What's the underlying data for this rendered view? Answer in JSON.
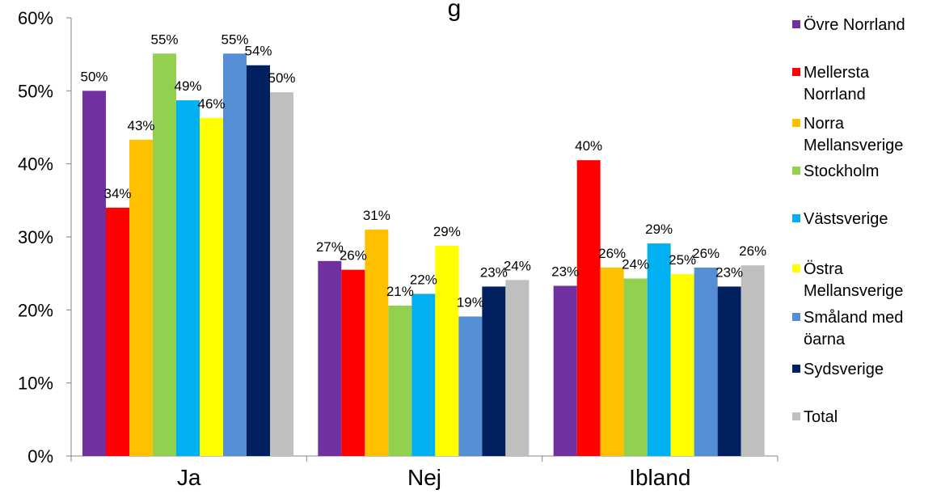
{
  "chart_data": {
    "type": "bar",
    "title_visible_fragment": "g",
    "categories": [
      "Ja",
      "Nej",
      "Ibland"
    ],
    "ylim": [
      0,
      60
    ],
    "yticks": [
      "0%",
      "10%",
      "20%",
      "30%",
      "40%",
      "50%",
      "60%"
    ],
    "grid": false,
    "legend_position": "right",
    "series": [
      {
        "name": "Övre Norrland",
        "legend_lines": [
          "Övre Norrland"
        ],
        "color": "#7030A0",
        "values": [
          50,
          26.7,
          23.3
        ],
        "labels": [
          "50%",
          "27%",
          "23%"
        ]
      },
      {
        "name": "Mellersta Norrland",
        "legend_lines": [
          "Mellersta",
          "Norrland"
        ],
        "color": "#FF0000",
        "values": [
          34,
          25.5,
          40.5
        ],
        "labels": [
          "34%",
          "26%",
          "40%"
        ]
      },
      {
        "name": "Norra Mellansverige",
        "legend_lines": [
          "Norra",
          "Mellansverige"
        ],
        "color": "#FFC000",
        "values": [
          43.3,
          31,
          25.8
        ],
        "labels": [
          "43%",
          "31%",
          "26%"
        ]
      },
      {
        "name": "Stockholm",
        "legend_lines": [
          "Stockholm"
        ],
        "color": "#92D050",
        "values": [
          55.1,
          20.6,
          24.3
        ],
        "labels": [
          "55%",
          "21%",
          "24%"
        ]
      },
      {
        "name": "Västsverige",
        "legend_lines": [
          "Västsverige"
        ],
        "color": "#00B0F0",
        "values": [
          48.7,
          22.2,
          29.1
        ],
        "labels": [
          "49%",
          "22%",
          "29%"
        ]
      },
      {
        "name": "Östra Mellansverige",
        "legend_lines": [
          "Östra",
          "Mellansverige"
        ],
        "color": "#FFFF00",
        "values": [
          46.3,
          28.8,
          24.9
        ],
        "labels": [
          "46%",
          "29%",
          "25%"
        ]
      },
      {
        "name": "Småland med öarna",
        "legend_lines": [
          "Småland med",
          "öarna"
        ],
        "color": "#558ED5",
        "values": [
          55.1,
          19.1,
          25.8
        ],
        "labels": [
          "55%",
          "19%",
          "26%"
        ]
      },
      {
        "name": "Sydsverige",
        "legend_lines": [
          "Sydsverige"
        ],
        "color": "#002060",
        "values": [
          53.5,
          23.2,
          23.2
        ],
        "labels": [
          "54%",
          "23%",
          "23%"
        ]
      },
      {
        "name": "Total",
        "legend_lines": [
          "Total"
        ],
        "color": "#BFBFBF",
        "values": [
          49.8,
          24.1,
          26.1
        ],
        "labels": [
          "50%",
          "24%",
          "26%"
        ]
      }
    ]
  }
}
